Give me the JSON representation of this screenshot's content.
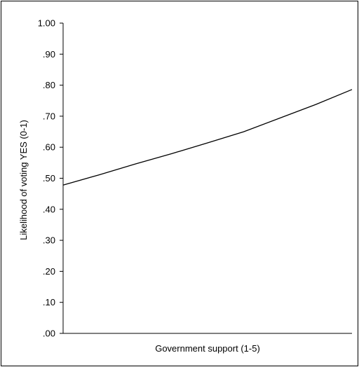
{
  "chart_data": {
    "type": "line",
    "title": "",
    "xlabel": "Government support (1-5)",
    "ylabel": "Likelihood of voting YES (0-1)",
    "ylim": [
      0,
      1
    ],
    "xlim": [
      1,
      5
    ],
    "yticks": [
      ".00",
      ".10",
      ".20",
      ".30",
      ".40",
      ".50",
      ".60",
      ".70",
      ".80",
      ".90",
      "1.00"
    ],
    "grid": false,
    "legend": "none",
    "x": [
      1,
      1.5,
      2,
      2.5,
      3,
      3.5,
      4,
      4.5,
      5
    ],
    "series": [
      {
        "values": [
          0.478,
          0.511,
          0.546,
          0.579,
          0.614,
          0.65,
          0.694,
          0.738,
          0.786
        ]
      }
    ],
    "line_color": "#000000"
  }
}
